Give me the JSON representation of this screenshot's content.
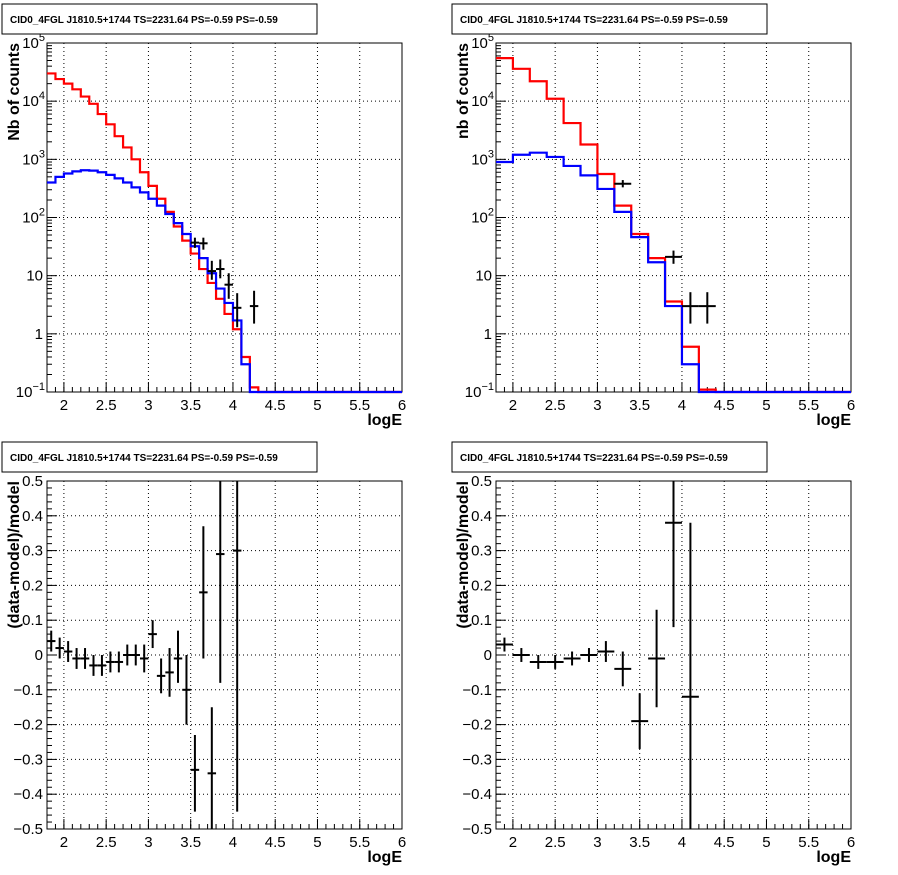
{
  "colors": {
    "data": "#000000",
    "model_total": "#ff0000",
    "model_source": "#0000ff",
    "grid": "#000000"
  },
  "chart_data": [
    {
      "type": "line",
      "title": "CID0_4FGL J1810.5+1744 TS=2231.64 PS=-0.59 PS=-0.59",
      "xlabel": "logE",
      "ylabel": "Nb of counts",
      "xlim": [
        1.8,
        6
      ],
      "ylim": [
        0.1,
        100000
      ],
      "yscale": "log",
      "grid": true,
      "xticks": [
        "2",
        "2.5",
        "3",
        "3.5",
        "4",
        "4.5",
        "5",
        "5.5",
        "6"
      ],
      "yticks": [
        {
          "v": 0.1,
          "b": "10",
          "e": "−1"
        },
        {
          "v": 1,
          "b": "1",
          "e": ""
        },
        {
          "v": 10,
          "b": "10",
          "e": ""
        },
        {
          "v": 100,
          "b": "10",
          "e": "2"
        },
        {
          "v": 1000,
          "b": "10",
          "e": "3"
        },
        {
          "v": 10000,
          "b": "10",
          "e": "4"
        },
        {
          "v": 100000,
          "b": "10",
          "e": "5"
        }
      ],
      "bin_edges": [
        1.8,
        1.9,
        2.0,
        2.1,
        2.2,
        2.3,
        2.4,
        2.5,
        2.6,
        2.7,
        2.8,
        2.9,
        3.0,
        3.1,
        3.2,
        3.3,
        3.4,
        3.5,
        3.6,
        3.7,
        3.8,
        3.9,
        4.0,
        4.1,
        4.2,
        4.3,
        4.4,
        4.5,
        4.6,
        4.7,
        4.8,
        4.9,
        5.0,
        5.1,
        5.2,
        5.3,
        5.4,
        5.5,
        5.6,
        5.7,
        5.8,
        5.9,
        6.0
      ],
      "series": [
        {
          "kind": "hist",
          "color": "model_total",
          "values": [
            30000,
            24000,
            20000,
            16000,
            12000,
            9000,
            6000,
            4000,
            2500,
            1600,
            1000,
            600,
            350,
            210,
            125,
            70,
            40,
            24,
            13,
            7.5,
            4,
            2.2,
            1.2,
            0.4,
            0.12,
            0.1,
            0.1,
            0.1,
            0.1,
            0.1,
            0.1,
            0.1,
            0.1,
            0.1,
            0.1,
            0.1,
            0.1,
            0.1,
            0.1,
            0.1,
            0.1,
            0.1
          ]
        },
        {
          "kind": "hist",
          "color": "model_source",
          "values": [
            400,
            500,
            570,
            620,
            650,
            640,
            600,
            540,
            470,
            400,
            330,
            270,
            210,
            160,
            115,
            80,
            52,
            32,
            20,
            11,
            6,
            3.4,
            1.7,
            0.3,
            0.1,
            0.1,
            0.1,
            0.1,
            0.1,
            0.1,
            0.1,
            0.1,
            0.1,
            0.1,
            0.1,
            0.1,
            0.1,
            0.1,
            0.1,
            0.1,
            0.1,
            0.1
          ]
        },
        {
          "kind": "points",
          "color": "data",
          "points": [
            [
              3.55,
              37,
              30,
              45
            ],
            [
              3.65,
              36,
              28,
              45
            ],
            [
              3.75,
              12,
              8.5,
              18
            ],
            [
              3.85,
              13,
              9,
              19
            ],
            [
              3.95,
              7,
              4,
              11
            ],
            [
              4.05,
              2.8,
              1.3,
              5
            ],
            [
              4.25,
              3,
              1.5,
              5.5
            ]
          ]
        }
      ]
    },
    {
      "type": "line",
      "title": "CID0_4FGL J1810.5+1744 TS=2231.64 PS=-0.59 PS=-0.59",
      "xlabel": "logE",
      "ylabel": "nb of counts",
      "xlim": [
        1.8,
        6
      ],
      "ylim": [
        0.1,
        100000
      ],
      "yscale": "log",
      "grid": true,
      "xticks": [
        "2",
        "2.5",
        "3",
        "3.5",
        "4",
        "4.5",
        "5",
        "5.5",
        "6"
      ],
      "yticks": [
        {
          "v": 0.1,
          "b": "10",
          "e": "−1"
        },
        {
          "v": 1,
          "b": "1",
          "e": ""
        },
        {
          "v": 10,
          "b": "10",
          "e": ""
        },
        {
          "v": 100,
          "b": "10",
          "e": "2"
        },
        {
          "v": 1000,
          "b": "10",
          "e": "3"
        },
        {
          "v": 10000,
          "b": "10",
          "e": "4"
        },
        {
          "v": 100000,
          "b": "10",
          "e": "5"
        }
      ],
      "bin_edges": [
        1.8,
        2.0,
        2.2,
        2.4,
        2.6,
        2.8,
        3.0,
        3.2,
        3.4,
        3.6,
        3.8,
        4.0,
        4.2,
        4.4,
        4.6,
        4.8,
        5.0,
        5.2,
        5.4,
        5.6,
        5.8,
        6.0
      ],
      "series": [
        {
          "kind": "hist",
          "color": "model_total",
          "values": [
            55000,
            36000,
            22000,
            11000,
            4200,
            1800,
            560,
            160,
            52,
            20,
            3.6,
            0.6,
            0.11,
            0.1,
            0.1,
            0.1,
            0.1,
            0.1,
            0.1,
            0.1,
            0.1
          ]
        },
        {
          "kind": "hist",
          "color": "model_source",
          "values": [
            900,
            1200,
            1300,
            1100,
            770,
            530,
            310,
            125,
            46,
            17,
            3.0,
            0.3,
            0.1,
            0.1,
            0.1,
            0.1,
            0.1,
            0.1,
            0.1,
            0.1,
            0.1
          ]
        },
        {
          "kind": "points",
          "color": "data",
          "points": [
            [
              3.3,
              380,
              330,
              440
            ],
            [
              3.9,
              21,
              16,
              27
            ],
            [
              4.1,
              3,
              1.5,
              5.2
            ],
            [
              4.3,
              3,
              1.5,
              5.2
            ]
          ]
        }
      ]
    },
    {
      "type": "scatter",
      "title": "CID0_4FGL J1810.5+1744 TS=2231.64 PS=-0.59 PS=-0.59",
      "xlabel": "logE",
      "ylabel": "(data-model)/model",
      "xlim": [
        1.8,
        6
      ],
      "ylim": [
        -0.5,
        0.5
      ],
      "yscale": "linear",
      "grid": true,
      "xticks": [
        "2",
        "2.5",
        "3",
        "3.5",
        "4",
        "4.5",
        "5",
        "5.5",
        "6"
      ],
      "yticks": [
        {
          "v": -0.5,
          "b": "−0.5"
        },
        {
          "v": -0.4,
          "b": "−0.4"
        },
        {
          "v": -0.3,
          "b": "−0.3"
        },
        {
          "v": -0.2,
          "b": "−0.2"
        },
        {
          "v": -0.1,
          "b": "−0.1"
        },
        {
          "v": 0,
          "b": "0"
        },
        {
          "v": 0.1,
          "b": "0.1"
        },
        {
          "v": 0.2,
          "b": "0.2"
        },
        {
          "v": 0.3,
          "b": "0.3"
        },
        {
          "v": 0.4,
          "b": "0.4"
        },
        {
          "v": 0.5,
          "b": "0.5"
        }
      ],
      "xerr": 0.05,
      "series": [
        {
          "kind": "points",
          "color": "data",
          "points": [
            [
              1.85,
              0.04,
              0.01,
              0.07
            ],
            [
              1.95,
              0.02,
              -0.01,
              0.05
            ],
            [
              2.05,
              0.01,
              -0.02,
              0.04
            ],
            [
              2.15,
              -0.01,
              -0.04,
              0.02
            ],
            [
              2.25,
              -0.01,
              -0.04,
              0.02
            ],
            [
              2.35,
              -0.03,
              -0.06,
              0.0
            ],
            [
              2.45,
              -0.03,
              -0.06,
              0.0
            ],
            [
              2.55,
              -0.02,
              -0.05,
              0.01
            ],
            [
              2.65,
              -0.02,
              -0.05,
              0.01
            ],
            [
              2.75,
              0.0,
              -0.03,
              0.03
            ],
            [
              2.85,
              0.0,
              -0.03,
              0.03
            ],
            [
              2.95,
              -0.01,
              -0.05,
              0.03
            ],
            [
              3.05,
              0.06,
              0.02,
              0.1
            ],
            [
              3.15,
              -0.06,
              -0.11,
              -0.01
            ],
            [
              3.25,
              -0.05,
              -0.12,
              0.02
            ],
            [
              3.35,
              -0.01,
              -0.08,
              0.07
            ],
            [
              3.45,
              -0.1,
              -0.2,
              0.0
            ],
            [
              3.55,
              -0.33,
              -0.45,
              -0.23
            ],
            [
              3.65,
              0.18,
              -0.01,
              0.37
            ],
            [
              3.75,
              -0.34,
              -0.5,
              -0.15
            ],
            [
              3.85,
              0.29,
              -0.08,
              0.5
            ],
            [
              4.05,
              0.3,
              -0.45,
              0.5
            ]
          ]
        }
      ]
    },
    {
      "type": "scatter",
      "title": "CID0_4FGL J1810.5+1744 TS=2231.64 PS=-0.59 PS=-0.59",
      "xlabel": "logE",
      "ylabel": "(data-model)/model",
      "xlim": [
        1.8,
        6
      ],
      "ylim": [
        -0.5,
        0.5
      ],
      "yscale": "linear",
      "grid": true,
      "xticks": [
        "2",
        "2.5",
        "3",
        "3.5",
        "4",
        "4.5",
        "5",
        "5.5",
        "6"
      ],
      "yticks": [
        {
          "v": -0.5,
          "b": "−0.5"
        },
        {
          "v": -0.4,
          "b": "−0.4"
        },
        {
          "v": -0.3,
          "b": "−0.3"
        },
        {
          "v": -0.2,
          "b": "−0.2"
        },
        {
          "v": -0.1,
          "b": "−0.1"
        },
        {
          "v": 0,
          "b": "0"
        },
        {
          "v": 0.1,
          "b": "0.1"
        },
        {
          "v": 0.2,
          "b": "0.2"
        },
        {
          "v": 0.3,
          "b": "0.3"
        },
        {
          "v": 0.4,
          "b": "0.4"
        },
        {
          "v": 0.5,
          "b": "0.5"
        }
      ],
      "xerr": 0.1,
      "series": [
        {
          "kind": "points",
          "color": "data",
          "points": [
            [
              1.9,
              0.03,
              0.01,
              0.05
            ],
            [
              2.1,
              0.0,
              -0.02,
              0.02
            ],
            [
              2.3,
              -0.02,
              -0.04,
              0.0
            ],
            [
              2.5,
              -0.02,
              -0.04,
              0.0
            ],
            [
              2.7,
              -0.01,
              -0.03,
              0.01
            ],
            [
              2.9,
              0.0,
              -0.02,
              0.02
            ],
            [
              3.1,
              0.01,
              -0.02,
              0.04
            ],
            [
              3.3,
              -0.04,
              -0.09,
              0.01
            ],
            [
              3.5,
              -0.19,
              -0.27,
              -0.11
            ],
            [
              3.7,
              -0.01,
              -0.15,
              0.13
            ],
            [
              3.9,
              0.38,
              0.08,
              0.5
            ],
            [
              4.1,
              -0.12,
              -0.5,
              0.38
            ]
          ]
        }
      ]
    }
  ]
}
